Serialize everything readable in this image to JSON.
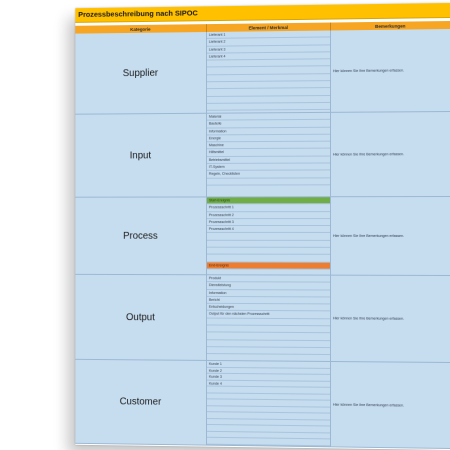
{
  "title": "Prozessbeschreibung nach SIPOC",
  "headers": {
    "category": "Kategorie",
    "element": "Element / Merkmal",
    "remarks": "Bemerkungen"
  },
  "remark_text": "Hier können Sie Ihre Bemerkungen erfassen.",
  "colors": {
    "title": "#ffc000",
    "header": "#f6a623",
    "cells": "#c6dcef",
    "start": "#70ad47",
    "end": "#ed7d31"
  },
  "sections": [
    {
      "category": "Supplier",
      "items": [
        "Lieferant 1",
        "Lieferant 2",
        "Lieferant 3",
        "Lieferant 4",
        "",
        "",
        "",
        "",
        "",
        "",
        ""
      ]
    },
    {
      "category": "Input",
      "items": [
        "Material",
        "Bauteile",
        "Information",
        "Energie",
        "Maschine",
        "Hilfsmittel",
        "Betriebsmittel",
        "IT-System",
        "Regeln, Checklisten",
        ""
      ]
    },
    {
      "category": "Process",
      "items": [
        "Start-Ereignis",
        "Prozessschritt 1",
        "Prozessschritt 2",
        "Prozessschritt 3",
        "Prozessschritt 4",
        "",
        "",
        "",
        "",
        "End-Ereignis"
      ]
    },
    {
      "category": "Output",
      "items": [
        "Produkt",
        "Dienstleistung",
        "Information",
        "Bericht",
        "Entscheidungen",
        "Output für den nächsten Prozessschritt",
        "",
        "",
        "",
        "",
        ""
      ]
    },
    {
      "category": "Customer",
      "items": [
        "Kunde 1",
        "Kunde 2",
        "Kunde 3",
        "Kunde 4",
        "",
        "",
        "",
        "",
        "",
        "",
        "",
        "",
        ""
      ]
    }
  ]
}
